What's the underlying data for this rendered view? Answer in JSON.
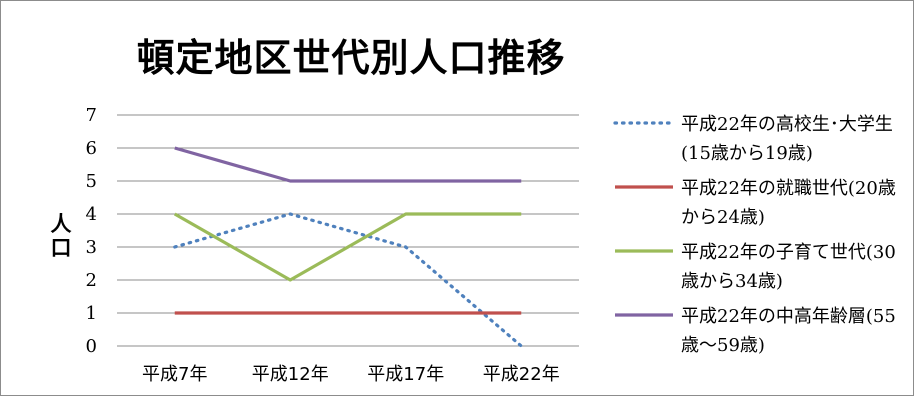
{
  "chart_data": {
    "type": "line",
    "title": "頓定地区世代別人口推移",
    "ylabel": "人口",
    "xlabel": "",
    "categories": [
      "平成7年",
      "平成12年",
      "平成17年",
      "平成22年"
    ],
    "ylim": [
      0,
      7
    ],
    "yticks": [
      0,
      1,
      2,
      3,
      4,
      5,
      6,
      7
    ],
    "grid": true,
    "legend_position": "right",
    "series": [
      {
        "name": "平成22年の高校生･大学生(15歳から19歳)",
        "values": [
          3,
          4,
          3,
          0
        ],
        "color": "#4f81bd",
        "style": "dotted"
      },
      {
        "name": "平成22年の就職世代(20歳から24歳)",
        "values": [
          1,
          1,
          1,
          1
        ],
        "color": "#c0504d",
        "style": "solid"
      },
      {
        "name": "平成22年の子育て世代(30歳から34歳)",
        "values": [
          4,
          2,
          4,
          4
        ],
        "color": "#9bbb59",
        "style": "solid"
      },
      {
        "name": "平成22年の中高年齢層(55歳～59歳)",
        "values": [
          6,
          5,
          5,
          5
        ],
        "color": "#8064a2",
        "style": "solid"
      }
    ]
  }
}
